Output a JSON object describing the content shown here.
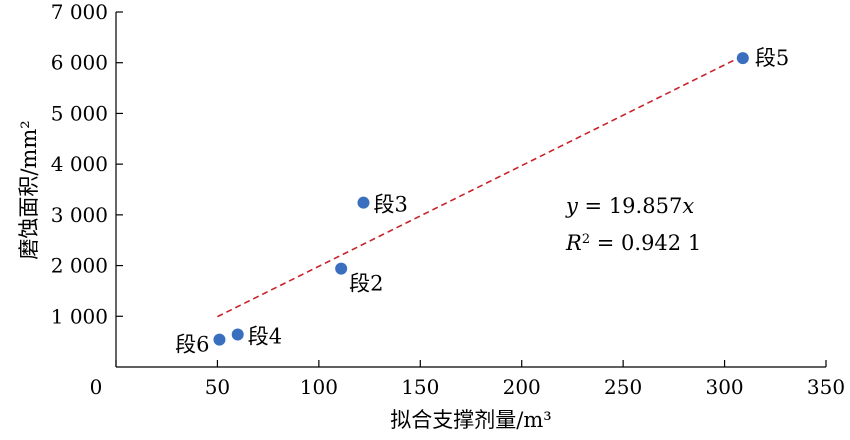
{
  "chart_data": {
    "type": "scatter",
    "xlabel": "拟合支撑剂量/m³",
    "ylabel": "磨蚀面积/mm²",
    "xlim": [
      0,
      350
    ],
    "ylim": [
      0,
      7000
    ],
    "x_ticks": [
      0,
      50,
      100,
      150,
      200,
      250,
      300,
      350
    ],
    "x_tick_labels": [
      "0",
      "50",
      "100",
      "150",
      "200",
      "250",
      "300",
      "350"
    ],
    "y_ticks": [
      1000,
      2000,
      3000,
      4000,
      5000,
      6000,
      7000
    ],
    "y_tick_labels": [
      "1 000",
      "2 000",
      "3 000",
      "4 000",
      "5 000",
      "6 000",
      "7 000"
    ],
    "grid": false,
    "points": [
      {
        "label": "段2",
        "x": 111,
        "y": 1940
      },
      {
        "label": "段3",
        "x": 122,
        "y": 3240
      },
      {
        "label": "段4",
        "x": 60,
        "y": 640
      },
      {
        "label": "段5",
        "x": 309,
        "y": 6090
      },
      {
        "label": "段6",
        "x": 51,
        "y": 540
      }
    ],
    "point_color": "#3a6fbf",
    "trendline": {
      "slope": 19.857,
      "x_range": [
        50,
        309
      ],
      "color": "#c8232a",
      "style": "dashed",
      "equation": {
        "y_var": "y",
        "eq_rest": " = 19.857",
        "x_var": "x"
      },
      "r_squared": {
        "r_var": "R",
        "sup": "2",
        "rest": " = 0.942 1"
      }
    }
  }
}
